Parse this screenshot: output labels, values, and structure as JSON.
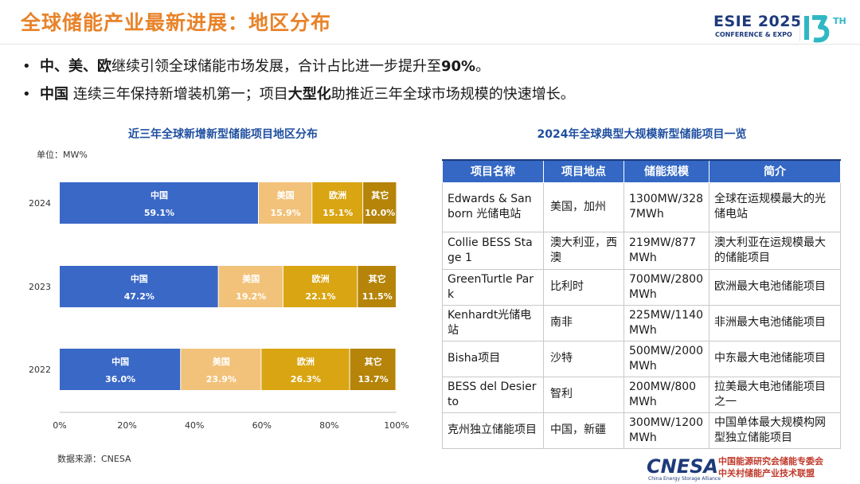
{
  "header": {
    "title": "全球储能产业最新进展：地区分布",
    "event_name": "ESIE 2025",
    "event_sub": "CONFERENCE & EXPO",
    "edition": "13TH"
  },
  "bullets": [
    {
      "lead": "中、美、欧",
      "mid": "继续引领全球储能市场发展，合计占比进一步提升至",
      "strong": "90%",
      "tail": "。"
    },
    {
      "lead": "中国",
      "mid": " 连续三年保持新增装机第一；项目",
      "strong": "大型化",
      "tail": "助推近三年全球市场规模的快速增长。"
    }
  ],
  "chart_panel": {
    "title": "近三年全球新增新型储能项目地区分布",
    "unit": "单位：MW%",
    "source": "数据来源：CNESA"
  },
  "chart_data": {
    "type": "bar",
    "orientation": "horizontal",
    "stacked": true,
    "categories": [
      "2024",
      "2023",
      "2022"
    ],
    "series": [
      {
        "name": "中国",
        "values": [
          59.1,
          47.2,
          36.0
        ],
        "labels": [
          "59.1%",
          "47.2%",
          "36.0%"
        ],
        "color": "#3a68c6"
      },
      {
        "name": "美国",
        "values": [
          15.9,
          19.2,
          23.9
        ],
        "labels": [
          "15.9%",
          "19.2%",
          "23.9%"
        ],
        "color": "#f2c27a"
      },
      {
        "name": "欧洲",
        "values": [
          15.1,
          22.1,
          26.3
        ],
        "labels": [
          "15.1%",
          "22.1%",
          "26.3%"
        ],
        "color": "#d9a512"
      },
      {
        "name": "其它",
        "values": [
          10.0,
          11.5,
          13.7
        ],
        "labels": [
          "10.0%",
          "11.5%",
          "13.7%"
        ],
        "color": "#b58408"
      }
    ],
    "xlim": [
      0,
      100
    ],
    "xticks": [
      "0%",
      "20%",
      "40%",
      "60%",
      "80%",
      "100%"
    ],
    "legend": "none (labels inside bars)"
  },
  "table_panel": {
    "title": "2024年全球典型大规模新型储能项目一览",
    "columns": [
      "项目名称",
      "项目地点",
      "储能规模",
      "简介"
    ],
    "rows": [
      [
        "Edwards & Sanborn 光储电站",
        "美国，加州",
        "1300MW/3287MWh",
        "全球在运规模最大的光储电站"
      ],
      [
        "Collie BESS Stage 1",
        "澳大利亚，西澳",
        "219MW/877MWh",
        "澳大利亚在运规模最大的储能项目"
      ],
      [
        "GreenTurtle Park",
        "比利时",
        "700MW/2800MWh",
        "欧洲最大电池储能项目"
      ],
      [
        "Kenhardt光储电站",
        "南非",
        "225MW/1140MWh",
        "非洲最大电池储能项目"
      ],
      [
        "Bisha项目",
        "沙特",
        "500MW/2000MWh",
        "中东最大电池储能项目"
      ],
      [
        "BESS del Desierto",
        "智利",
        "200MW/800MWh",
        "拉美最大电池储能项目之一"
      ],
      [
        "克州独立储能项目",
        "中国，新疆",
        "300MW/1200MWh",
        "中国单体最大规模构网型独立储能项目"
      ]
    ]
  },
  "footer": {
    "logo_text": "CNESA",
    "logo_sub": "China Energy Storage Alliance",
    "org_line1": "中国能源研究会储能专委会",
    "org_line2": "中关村储能产业技术联盟"
  },
  "colors": {
    "title_orange": "#e8832a",
    "heading_blue": "#1f4fa0",
    "table_header": "#3468c4",
    "brand_navy": "#1d3a7a"
  }
}
